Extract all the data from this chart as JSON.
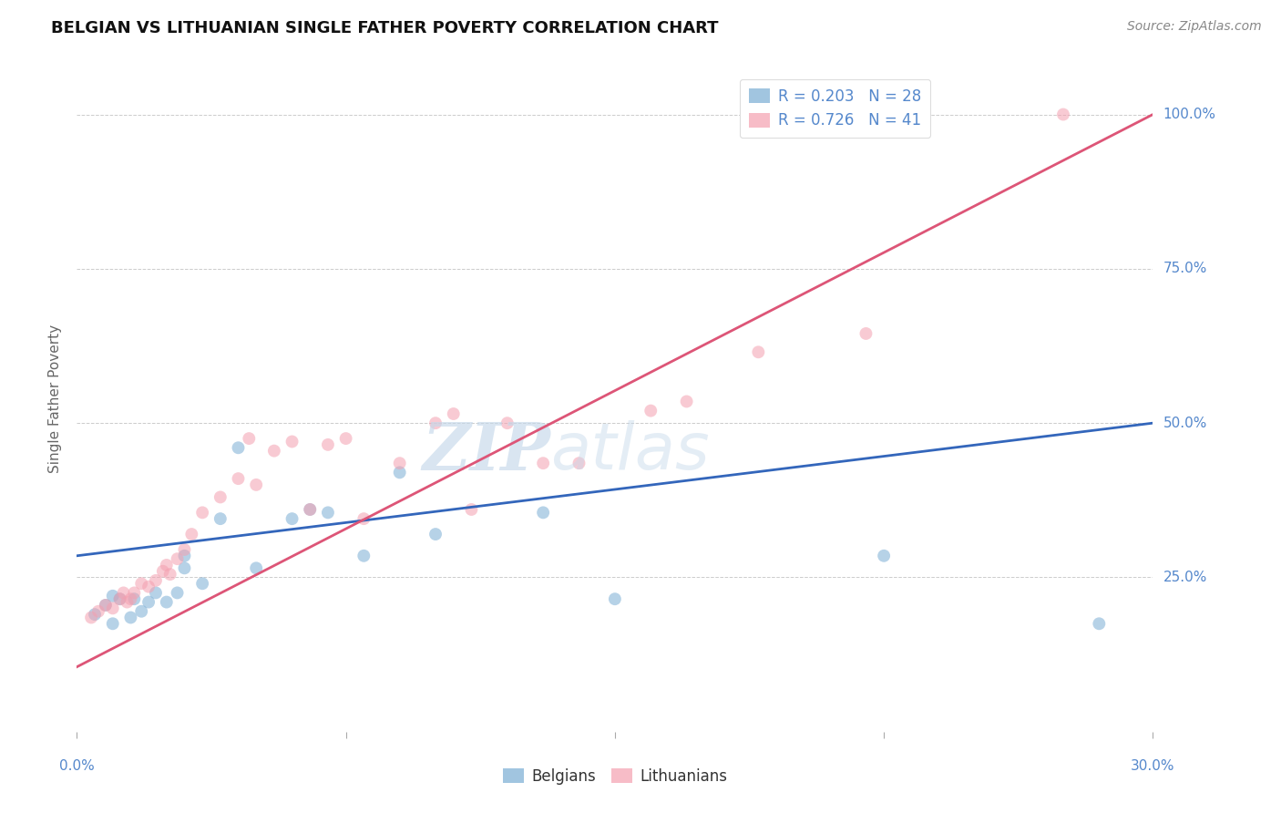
{
  "title": "BELGIAN VS LITHUANIAN SINGLE FATHER POVERTY CORRELATION CHART",
  "source": "Source: ZipAtlas.com",
  "ylabel": "Single Father Poverty",
  "xlim": [
    0.0,
    0.3
  ],
  "ylim": [
    0.0,
    1.08
  ],
  "yticks": [
    0.25,
    0.5,
    0.75,
    1.0
  ],
  "ytick_labels": [
    "25.0%",
    "50.0%",
    "75.0%",
    "100.0%"
  ],
  "xticks": [
    0.0,
    0.075,
    0.15,
    0.225,
    0.3
  ],
  "grid_color": "#cccccc",
  "bg_color": "#ffffff",
  "belgians_color": "#7aadd4",
  "lithuanians_color": "#f4a0b0",
  "belgians_R": 0.203,
  "belgians_N": 28,
  "lithuanians_R": 0.726,
  "lithuanians_N": 41,
  "belgians_line_color": "#3366bb",
  "lithuanians_line_color": "#dd5577",
  "tick_color": "#5588cc",
  "belgians_x": [
    0.005,
    0.008,
    0.01,
    0.01,
    0.012,
    0.015,
    0.016,
    0.018,
    0.02,
    0.022,
    0.025,
    0.028,
    0.03,
    0.03,
    0.035,
    0.04,
    0.045,
    0.05,
    0.06,
    0.065,
    0.07,
    0.08,
    0.09,
    0.1,
    0.13,
    0.15,
    0.225,
    0.285
  ],
  "belgians_y": [
    0.19,
    0.205,
    0.22,
    0.175,
    0.215,
    0.185,
    0.215,
    0.195,
    0.21,
    0.225,
    0.21,
    0.225,
    0.265,
    0.285,
    0.24,
    0.345,
    0.46,
    0.265,
    0.345,
    0.36,
    0.355,
    0.285,
    0.42,
    0.32,
    0.355,
    0.215,
    0.285,
    0.175
  ],
  "lithuanians_x": [
    0.004,
    0.006,
    0.008,
    0.01,
    0.012,
    0.013,
    0.014,
    0.015,
    0.016,
    0.018,
    0.02,
    0.022,
    0.024,
    0.025,
    0.026,
    0.028,
    0.03,
    0.032,
    0.035,
    0.04,
    0.045,
    0.048,
    0.05,
    0.055,
    0.06,
    0.065,
    0.07,
    0.075,
    0.08,
    0.09,
    0.1,
    0.105,
    0.11,
    0.12,
    0.13,
    0.14,
    0.16,
    0.17,
    0.19,
    0.22,
    0.275
  ],
  "lithuanians_y": [
    0.185,
    0.195,
    0.205,
    0.2,
    0.215,
    0.225,
    0.21,
    0.215,
    0.225,
    0.24,
    0.235,
    0.245,
    0.26,
    0.27,
    0.255,
    0.28,
    0.295,
    0.32,
    0.355,
    0.38,
    0.41,
    0.475,
    0.4,
    0.455,
    0.47,
    0.36,
    0.465,
    0.475,
    0.345,
    0.435,
    0.5,
    0.515,
    0.36,
    0.5,
    0.435,
    0.435,
    0.52,
    0.535,
    0.615,
    0.645,
    1.0
  ],
  "belgians_line_x": [
    0.0,
    0.3
  ],
  "belgians_line_y": [
    0.285,
    0.5
  ],
  "lithuanians_line_x": [
    0.0,
    0.3
  ],
  "lithuanians_line_y": [
    0.105,
    1.0
  ],
  "watermark_zip": "ZIP",
  "watermark_atlas": "atlas",
  "title_fontsize": 13,
  "axis_label_fontsize": 11,
  "tick_fontsize": 11,
  "legend_fontsize": 12,
  "source_fontsize": 10,
  "marker_size": 100,
  "marker_alpha": 0.55,
  "line_width": 2.0
}
